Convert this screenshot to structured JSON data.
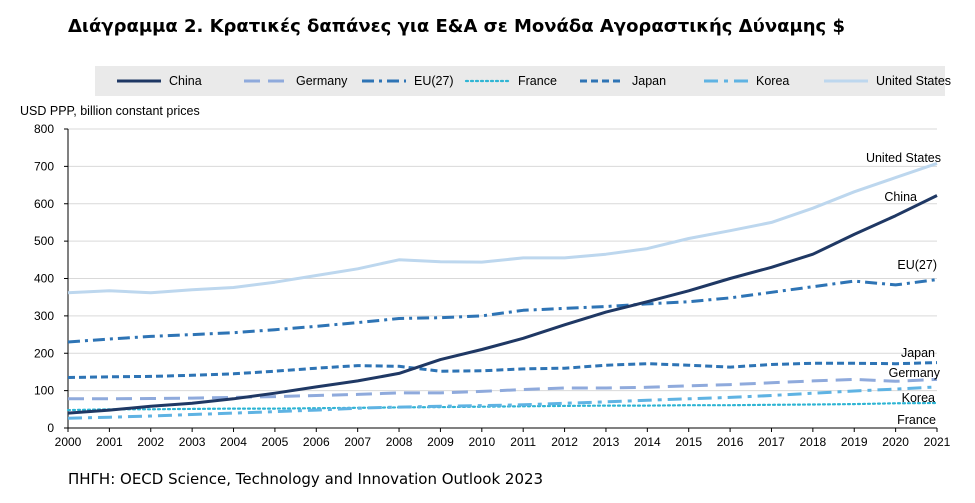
{
  "title": "Διάγραμμα 2. Κρατικές δαπάνες για Ε&Α σε Μονάδα Αγοραστικής Δύναμης $",
  "source": "ΠΗΓΗ: OECD Science, Technology and Innovation Outlook 2023",
  "chart_data": {
    "type": "line",
    "ylabel": "USD PPP, billion constant prices",
    "ylim": [
      0,
      800
    ],
    "yticks": [
      0,
      100,
      200,
      300,
      400,
      500,
      600,
      700,
      800
    ],
    "grid": true,
    "legend_position": "top",
    "x": [
      "2000",
      "2001",
      "2002",
      "2003",
      "2004",
      "2005",
      "2006",
      "2007",
      "2008",
      "2009",
      "2010",
      "2011",
      "2012",
      "2013",
      "2014",
      "2015",
      "2016",
      "2017",
      "2018",
      "2019",
      "2020",
      "2021"
    ],
    "series": [
      {
        "name": "China",
        "color": "#1f3864",
        "dash": "solid",
        "end_label": "China",
        "values": [
          40,
          48,
          58,
          66,
          78,
          93,
          110,
          126,
          146,
          183,
          210,
          240,
          276,
          310,
          338,
          367,
          400,
          430,
          465,
          518,
          568,
          622
        ]
      },
      {
        "name": "Germany",
        "color": "#8faadc",
        "dash": "longdash",
        "end_label": "Germany",
        "values": [
          78,
          78,
          79,
          80,
          82,
          84,
          87,
          90,
          94,
          94,
          98,
          103,
          107,
          107,
          109,
          113,
          116,
          121,
          126,
          130,
          125,
          130
        ]
      },
      {
        "name": "EU(27)",
        "color": "#2e74b5",
        "dash": "dashdot",
        "end_label": "EU(27)",
        "values": [
          230,
          238,
          245,
          250,
          255,
          263,
          272,
          282,
          293,
          295,
          300,
          315,
          320,
          325,
          332,
          338,
          348,
          363,
          378,
          393,
          383,
          397
        ]
      },
      {
        "name": "France",
        "color": "#2fb5d4",
        "dash": "dotted",
        "end_label": "France",
        "values": [
          48,
          50,
          50,
          51,
          52,
          52,
          53,
          54,
          55,
          56,
          57,
          58,
          59,
          60,
          60,
          61,
          61,
          62,
          63,
          64,
          66,
          67
        ]
      },
      {
        "name": "Japan",
        "color": "#2e74b5",
        "dash": "dashed",
        "end_label": "Japan",
        "values": [
          135,
          137,
          138,
          141,
          145,
          152,
          160,
          167,
          165,
          152,
          153,
          158,
          160,
          168,
          172,
          168,
          163,
          170,
          173,
          173,
          172,
          175
        ]
      },
      {
        "name": "Korea",
        "color": "#5fb3e3",
        "dash": "dashdot2",
        "end_label": "Korea",
        "values": [
          26,
          29,
          32,
          36,
          40,
          44,
          48,
          53,
          56,
          58,
          60,
          62,
          66,
          70,
          74,
          78,
          82,
          87,
          93,
          99,
          104,
          110
        ]
      },
      {
        "name": "United States",
        "color": "#bdd7ee",
        "dash": "solid",
        "end_label": "United States",
        "values": [
          362,
          367,
          362,
          370,
          376,
          390,
          408,
          426,
          450,
          445,
          444,
          455,
          455,
          465,
          480,
          507,
          528,
          550,
          588,
          632,
          670,
          708
        ]
      }
    ]
  }
}
